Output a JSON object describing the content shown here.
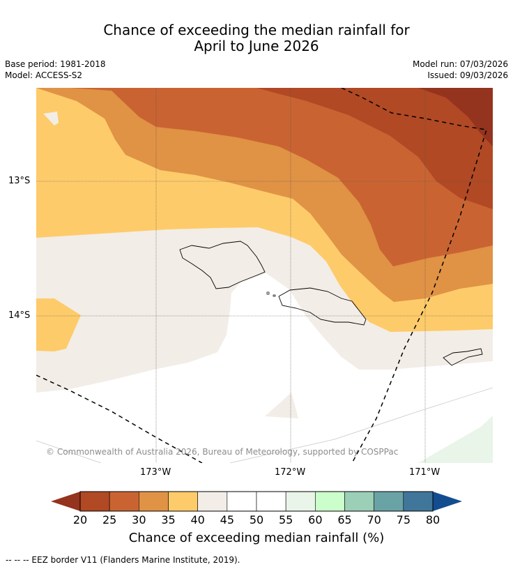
{
  "title": {
    "line1": "Chance of exceeding the median rainfall for",
    "line2": "April to June 2026"
  },
  "meta": {
    "base_period": "Base period: 1981-2018",
    "model": "Model: ACCESS-S2",
    "model_run": "Model run: 07/03/2026",
    "issued": "Issued: 09/03/2026"
  },
  "map": {
    "lat_labels": [
      "13°S",
      "14°S"
    ],
    "lon_labels": [
      "173°W",
      "172°W",
      "171°W"
    ],
    "copyright": "© Commonwealth of Australia 2026, Bureau of Meteorology, supported by COSPPac"
  },
  "colorbar": {
    "ticks": [
      "20",
      "25",
      "30",
      "35",
      "40",
      "45",
      "50",
      "55",
      "60",
      "65",
      "70",
      "75",
      "80"
    ],
    "colors": {
      "lt20": "#94331e",
      "20-25": "#b04924",
      "25-30": "#c96432",
      "30-35": "#e09245",
      "35-40": "#fecb6a",
      "40-45": "#f2ede7",
      "45-50": "#ffffff",
      "50-55": "#ffffff",
      "55-60": "#e8f5e8",
      "60-65": "#ccfecc",
      "65-70": "#9bcfb8",
      "70-75": "#6aa3a6",
      "75-80": "#41769b",
      "gt80": "#134d8f"
    },
    "label": "Chance of exceeding median rainfall (%)"
  },
  "footer": {
    "legend_text": "--  --  -- EEZ border V11 (Flanders Marine Institute, 2019)."
  }
}
